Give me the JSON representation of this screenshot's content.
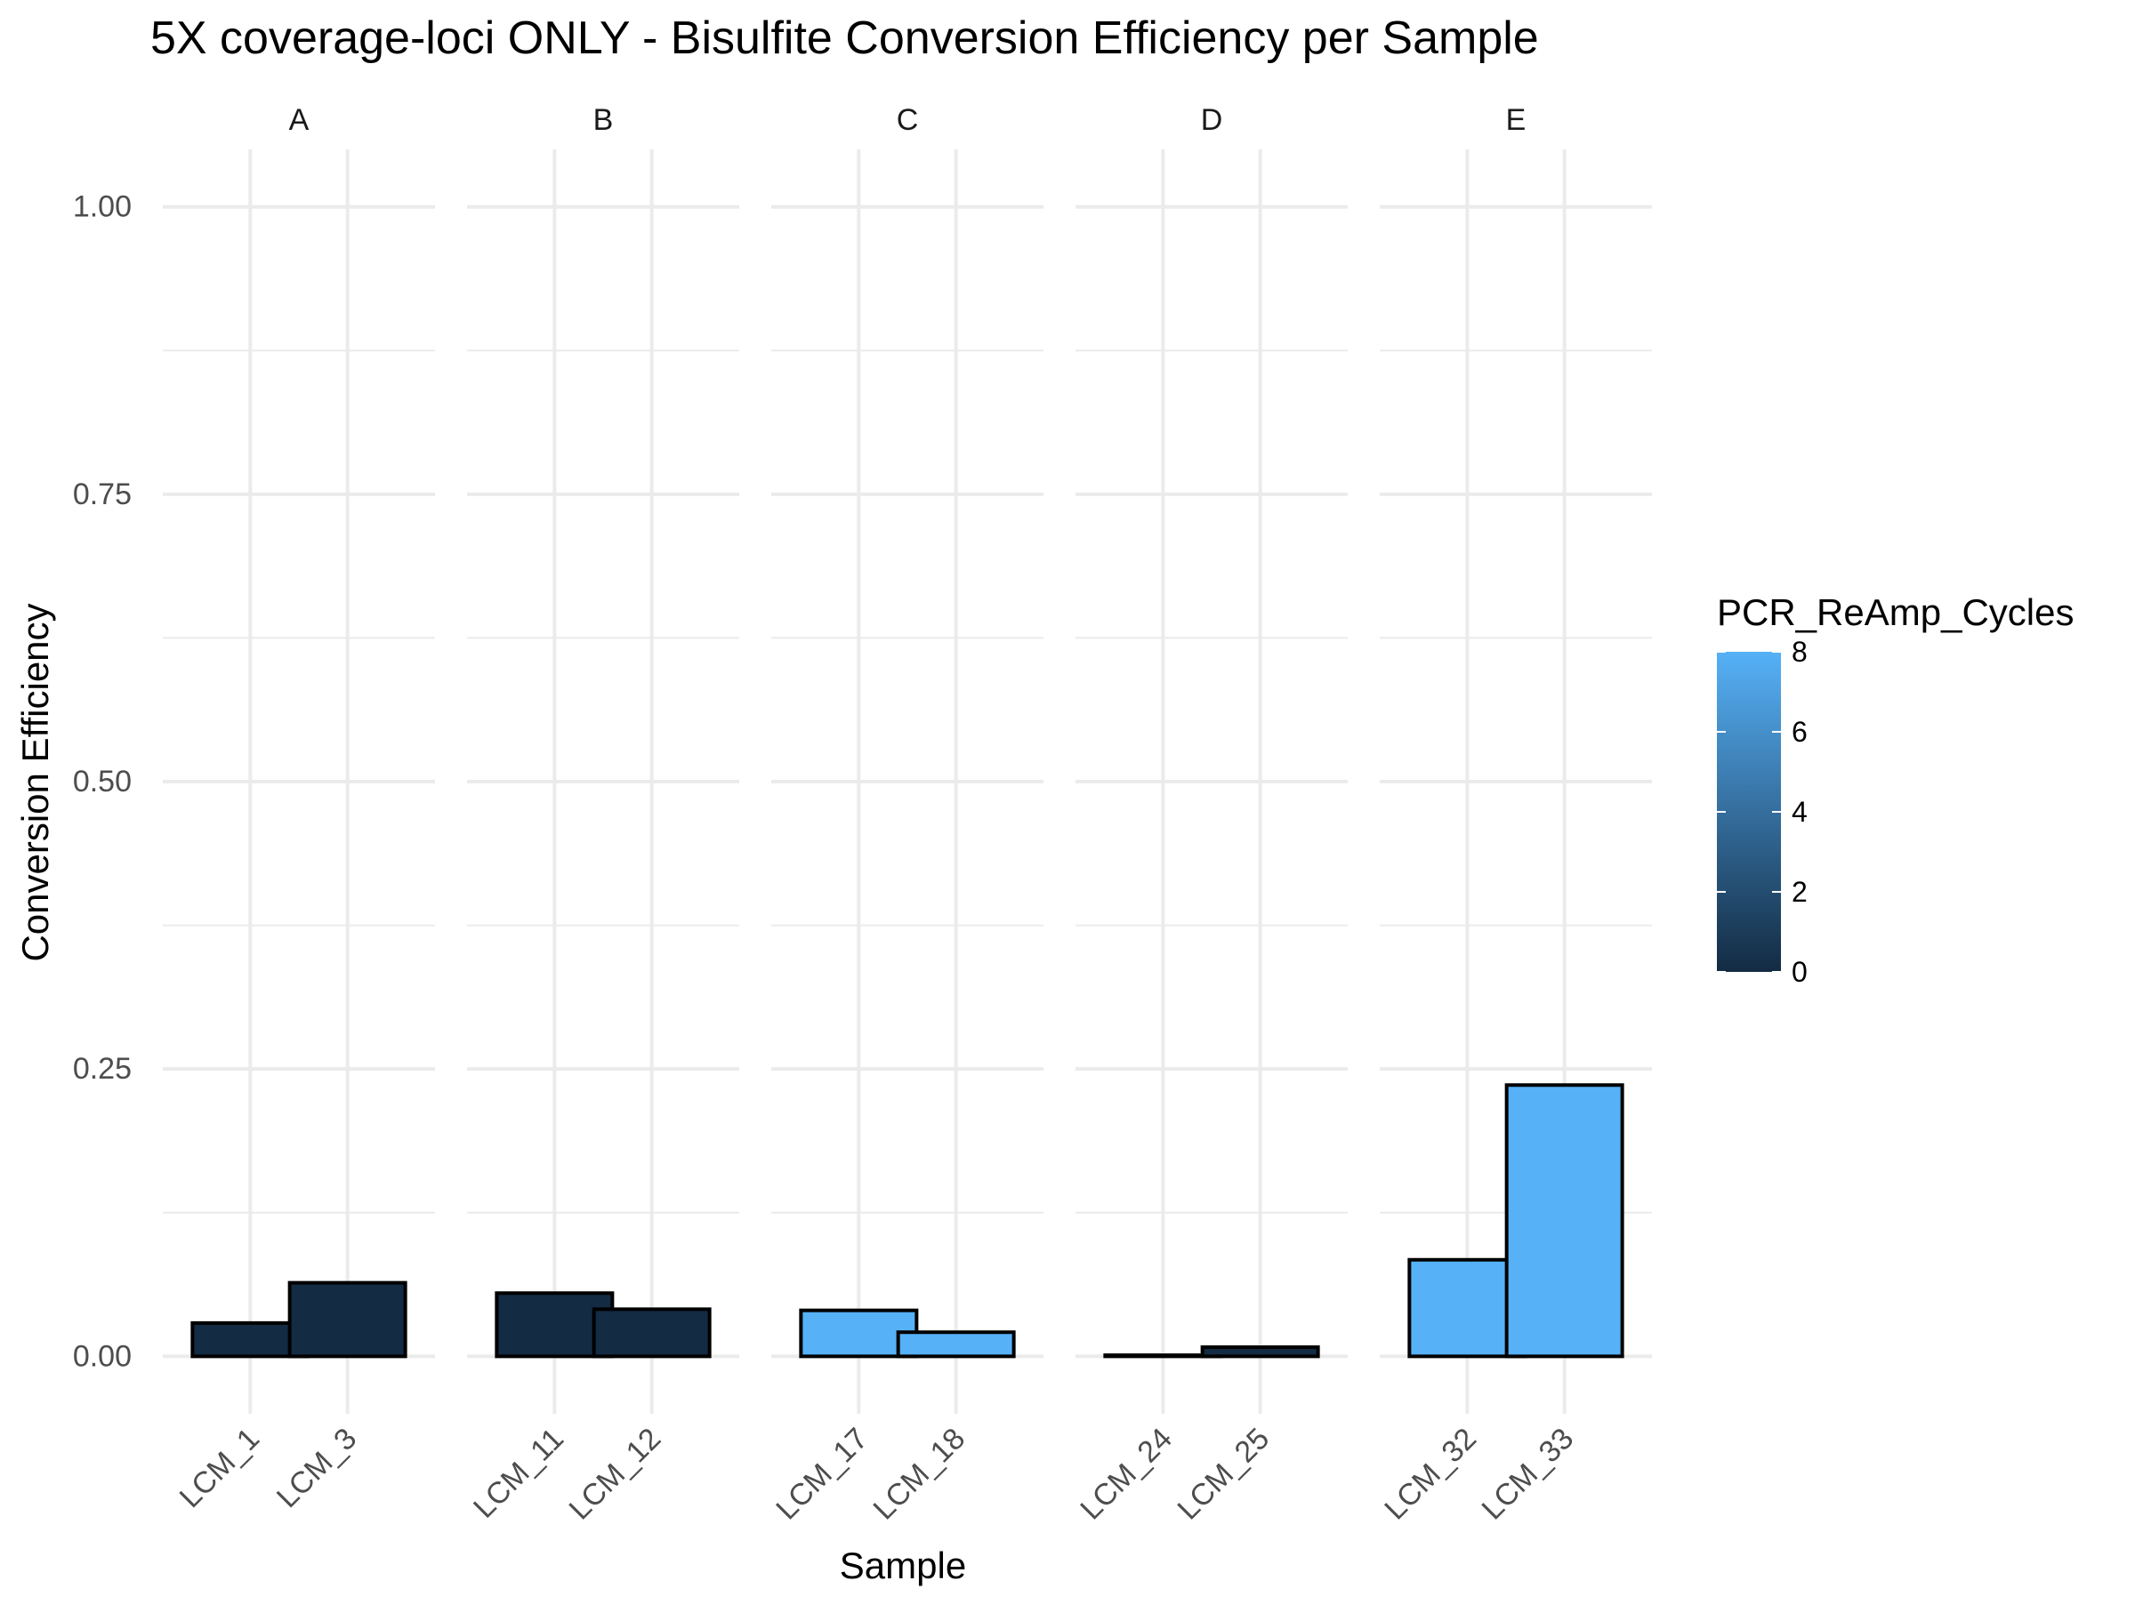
{
  "chart_data": {
    "type": "bar",
    "title": "5X coverage-loci ONLY - Bisulfite Conversion Efficiency per Sample",
    "xlabel": "Sample",
    "ylabel": "Conversion Efficiency",
    "ylim": [
      -0.05,
      1.05
    ],
    "yticks": [
      0.0,
      0.25,
      0.5,
      0.75,
      1.0
    ],
    "ytick_labels": [
      "0.00",
      "0.25",
      "0.50",
      "0.75",
      "1.00"
    ],
    "grid": true,
    "facets": [
      {
        "label": "A",
        "samples": [
          {
            "name": "LCM_1",
            "value": 0.029,
            "cycles": 0
          },
          {
            "name": "LCM_3",
            "value": 0.064,
            "cycles": 0
          }
        ]
      },
      {
        "label": "B",
        "samples": [
          {
            "name": "LCM_11",
            "value": 0.055,
            "cycles": 0
          },
          {
            "name": "LCM_12",
            "value": 0.041,
            "cycles": 0
          }
        ]
      },
      {
        "label": "C",
        "samples": [
          {
            "name": "LCM_17",
            "value": 0.04,
            "cycles": 8
          },
          {
            "name": "LCM_18",
            "value": 0.021,
            "cycles": 8
          }
        ]
      },
      {
        "label": "D",
        "samples": [
          {
            "name": "LCM_24",
            "value": 0.001,
            "cycles": 0
          },
          {
            "name": "LCM_25",
            "value": 0.008,
            "cycles": 0
          }
        ]
      },
      {
        "label": "E",
        "samples": [
          {
            "name": "LCM_32",
            "value": 0.084,
            "cycles": 8
          },
          {
            "name": "LCM_33",
            "value": 0.236,
            "cycles": 8
          }
        ]
      }
    ],
    "legend": {
      "title": "PCR_ReAmp_Cycles",
      "placement": "right",
      "min": 0,
      "max": 8,
      "ticks": [
        "0",
        "2",
        "4",
        "6",
        "8"
      ],
      "low_color": "#132b43",
      "high_color": "#56b1f7"
    }
  }
}
